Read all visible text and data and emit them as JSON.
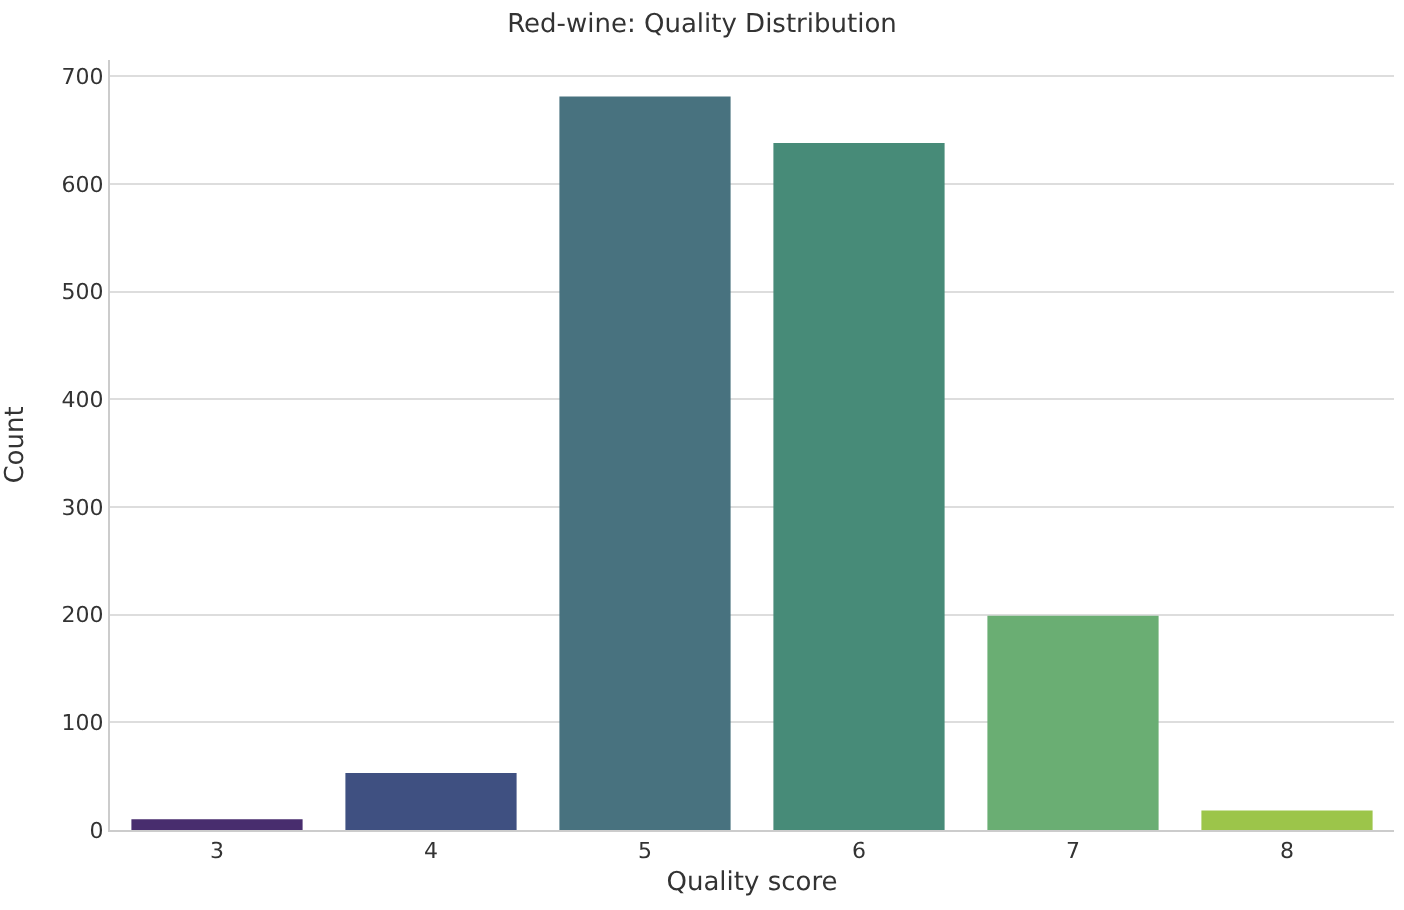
{
  "chart_data": {
    "type": "bar",
    "title": "Red-wine: Quality Distribution",
    "xlabel": "Quality score",
    "ylabel": "Count",
    "categories": [
      "3",
      "4",
      "5",
      "6",
      "7",
      "8"
    ],
    "values": [
      10,
      53,
      681,
      638,
      199,
      18
    ],
    "colors": [
      "#482d6e",
      "#3f5081",
      "#48727f",
      "#478b78",
      "#6aae73",
      "#9cc54a"
    ],
    "ylim": [
      0,
      715
    ],
    "yticks": [
      0,
      100,
      200,
      300,
      400,
      500,
      600,
      700
    ],
    "grid": "y"
  }
}
